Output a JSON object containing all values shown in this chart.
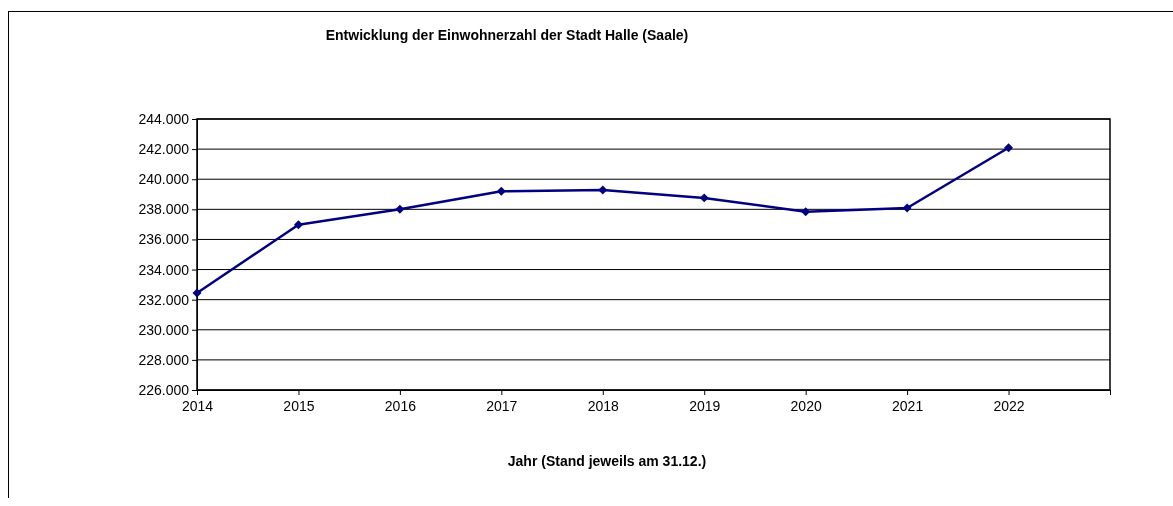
{
  "chart_data": {
    "type": "line",
    "title": "Entwicklung der Einwohnerzahl der Stadt Halle (Saale)",
    "xlabel": "Jahr (Stand jeweils am 31.12.)",
    "x": [
      2014,
      2015,
      2016,
      2017,
      2018,
      2019,
      2020,
      2021,
      2022
    ],
    "series": [
      {
        "color": "#000080",
        "values": [
          232440,
          236980,
          238000,
          239200,
          239290,
          238760,
          237840,
          238090,
          242090
        ]
      }
    ],
    "xlim": [
      2014,
      2023
    ],
    "xticks": [
      2014,
      2015,
      2016,
      2017,
      2018,
      2019,
      2020,
      2021,
      2022,
      {
        "value": 2023,
        "label": null
      }
    ],
    "ylim": [
      226000,
      244000
    ],
    "yticks": [
      {
        "value": 226000,
        "label": "226.000"
      },
      {
        "value": 228000,
        "label": "228.000"
      },
      {
        "value": 230000,
        "label": "230.000"
      },
      {
        "value": 232000,
        "label": "232.000"
      },
      {
        "value": 234000,
        "label": "234.000"
      },
      {
        "value": 236000,
        "label": "236.000"
      },
      {
        "value": 238000,
        "label": "238.000"
      },
      {
        "value": 240000,
        "label": "240.000"
      },
      {
        "value": 242000,
        "label": "242.000"
      },
      {
        "value": 244000,
        "label": "244.000"
      }
    ],
    "grid": "y",
    "marker": "diamond",
    "line_style": "solid"
  }
}
